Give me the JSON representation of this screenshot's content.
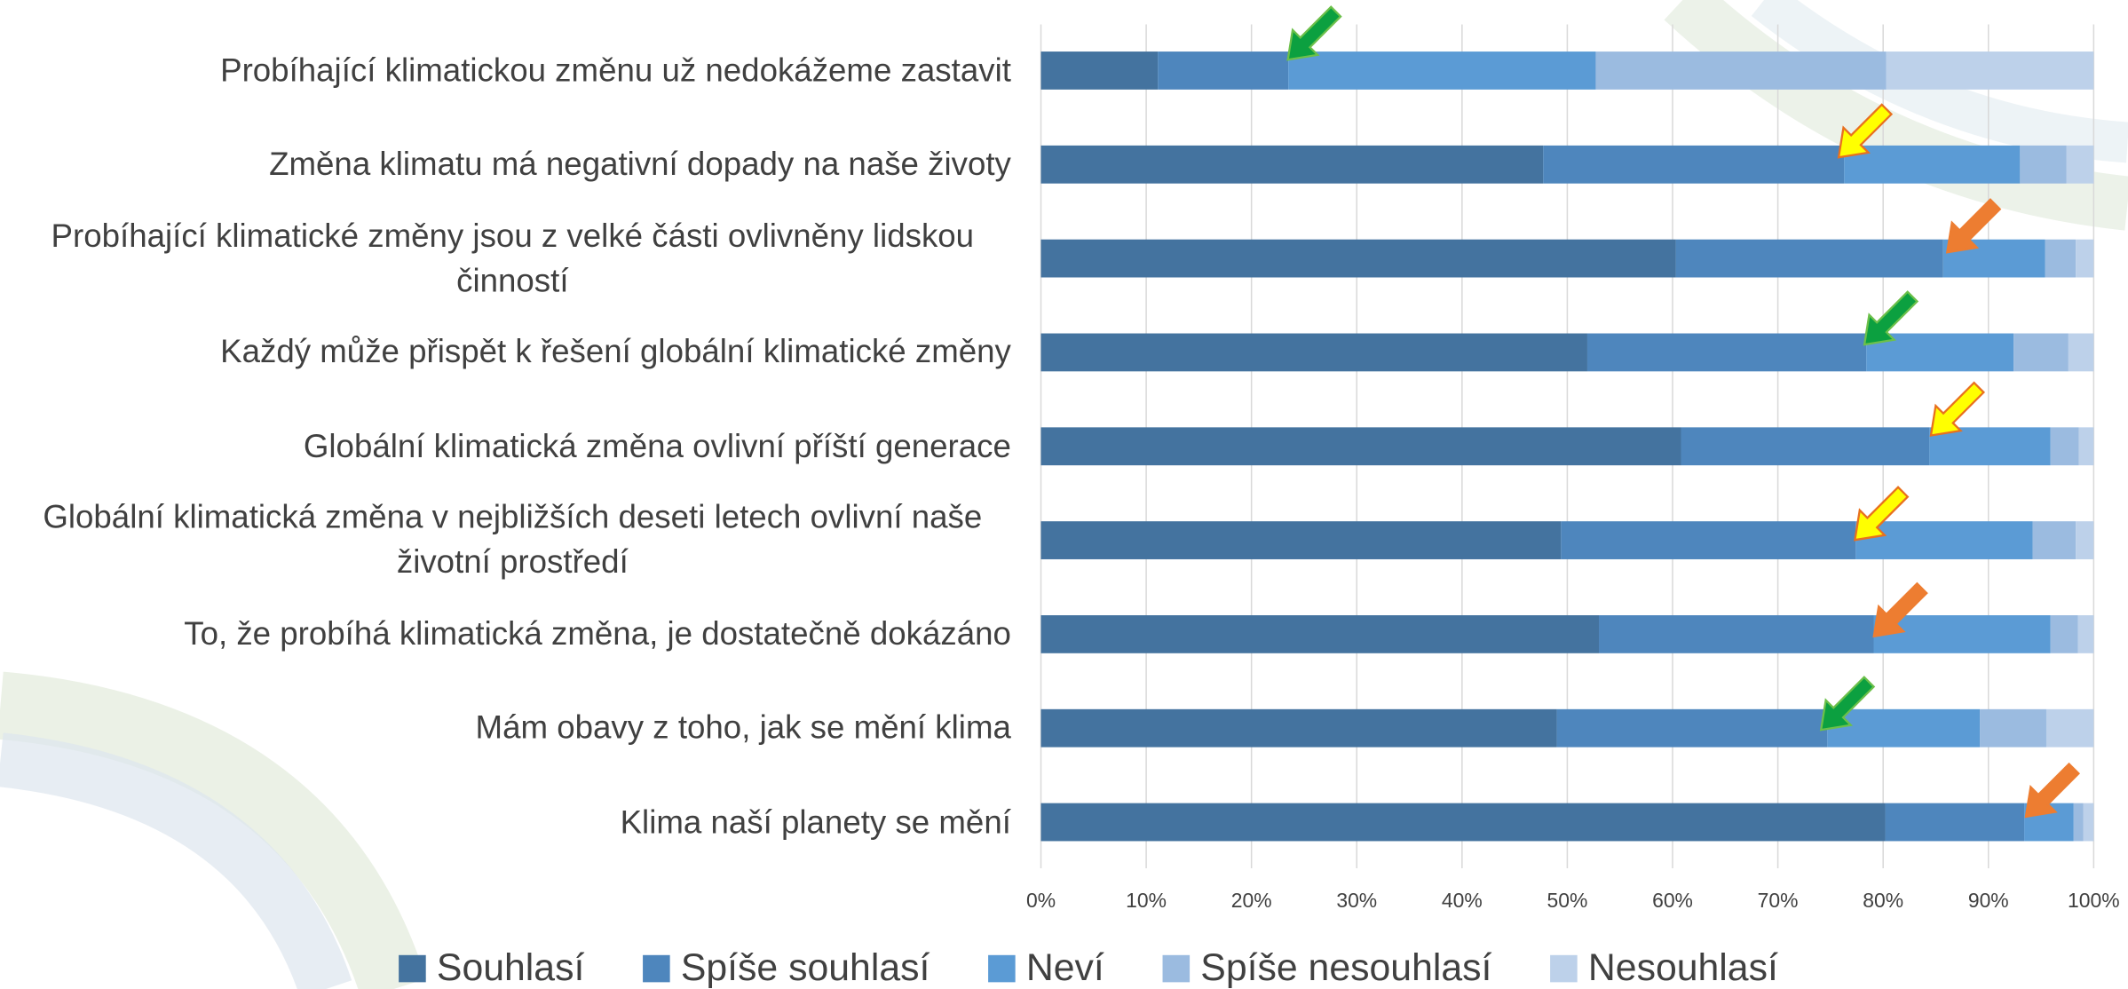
{
  "chart_data": {
    "type": "stacked-bar-horizontal",
    "categories": [
      "Probíhající klimatickou změnu už nedokážeme zastavit",
      "Změna klimatu má negativní dopady na naše životy",
      "Probíhající klimatické změny jsou z velké části ovlivněny lidskou činností",
      "Každý může přispět k řešení globální klimatické změny",
      "Globální klimatická změna ovlivní příští generace",
      "Globální klimatická změna v nejbližších deseti letech ovlivní naše životní prostředí",
      "To, že probíhá klimatická změna, je dostatečně dokázáno",
      "Mám obavy z toho, jak se mění klima",
      "Klima naší planety se mění"
    ],
    "series": [
      {
        "name": "Souhlasí",
        "color": "#44739f",
        "values": [
          11.1,
          47.7,
          60.3,
          51.9,
          60.8,
          49.4,
          53.0,
          49.0,
          80.2
        ]
      },
      {
        "name": "Spíše souhlasí",
        "color": "#4e86bd",
        "values": [
          12.4,
          28.6,
          25.4,
          26.5,
          23.6,
          28.0,
          26.1,
          25.7,
          13.2
        ]
      },
      {
        "name": "Neví",
        "color": "#5b9bd5",
        "values": [
          29.2,
          16.7,
          9.7,
          14.0,
          11.5,
          16.8,
          16.8,
          14.5,
          4.7
        ]
      },
      {
        "name": "Spíše nesouhlasí",
        "color": "#9bbbe0",
        "values": [
          27.6,
          4.4,
          2.9,
          5.2,
          2.7,
          4.1,
          2.6,
          6.3,
          0.9
        ]
      },
      {
        "name": "Nesouhlasí",
        "color": "#bdd1ea",
        "values": [
          19.7,
          2.6,
          1.7,
          2.4,
          1.4,
          1.7,
          1.5,
          4.5,
          1.0
        ]
      }
    ],
    "xlim": [
      0,
      100
    ],
    "xticks": [
      {
        "value": 0,
        "label": "0%"
      },
      {
        "value": 10,
        "label": "10%"
      },
      {
        "value": 20,
        "label": "20%"
      },
      {
        "value": 30,
        "label": "30%"
      },
      {
        "value": 40,
        "label": "40%"
      },
      {
        "value": 50,
        "label": "50%"
      },
      {
        "value": 60,
        "label": "60%"
      },
      {
        "value": 70,
        "label": "70%"
      },
      {
        "value": 80,
        "label": "80%"
      },
      {
        "value": 90,
        "label": "90%"
      },
      {
        "value": 100,
        "label": "100%"
      }
    ],
    "grid": true,
    "legend": "bottom"
  }
}
